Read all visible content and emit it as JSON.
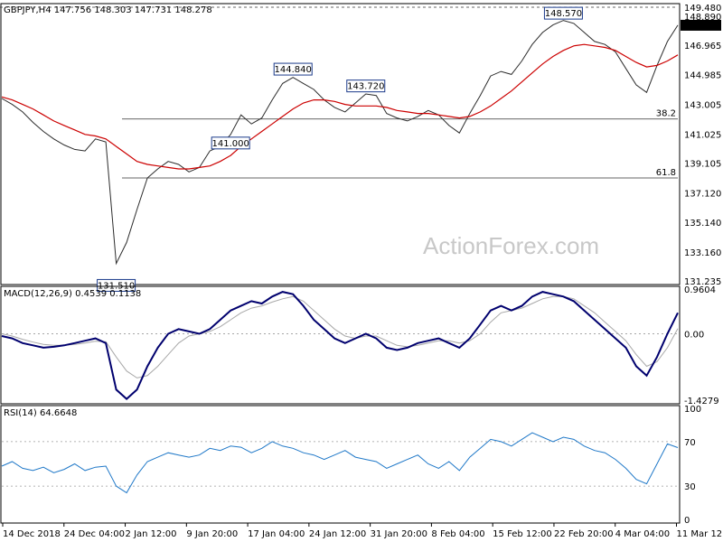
{
  "chart_data": {
    "type": "line",
    "panels": [
      {
        "name": "price",
        "header": "GBPJPY,H4  147.756 148.303 147.731 148.278",
        "y_axis_labels": [
          "149.480",
          "148.890",
          "148.278",
          "146.965",
          "144.985",
          "143.005",
          "141.025",
          "139.105",
          "137.120",
          "135.140",
          "133.160",
          "131.235"
        ],
        "current_price": "148.278",
        "ylim": [
          131.235,
          149.48
        ],
        "levels": [
          {
            "label": "38.2",
            "value": 142.03
          },
          {
            "label": "61.8",
            "value": 138.1
          }
        ],
        "annotations": [
          {
            "text": "131.510",
            "value": 131.51
          },
          {
            "text": "144.840",
            "value": 144.84
          },
          {
            "text": "148.570",
            "value": 148.57
          },
          {
            "text": "141.000",
            "value": 141.0
          },
          {
            "text": "143.720",
            "value": 143.72
          }
        ],
        "series": [
          {
            "values": [
              143.4,
              143.0,
              142.5,
              141.8,
              141.2,
              140.7,
              140.3,
              140.0,
              139.9,
              140.7,
              140.5,
              132.4,
              133.8,
              136.0,
              138.1,
              138.7,
              139.2,
              139.0,
              138.5,
              138.8,
              139.9,
              140.2,
              141.0,
              142.3,
              141.7,
              142.1,
              143.3,
              144.4,
              144.8,
              144.4,
              144.0,
              143.3,
              142.8,
              142.5,
              143.1,
              143.7,
              143.6,
              142.4,
              142.1,
              141.9,
              142.2,
              142.6,
              142.3,
              141.6,
              141.1,
              142.4,
              143.6,
              144.9,
              145.2,
              145.0,
              145.9,
              147.0,
              147.8,
              148.3,
              148.6,
              148.4,
              147.8,
              147.2,
              147.0,
              146.5,
              145.4,
              144.3,
              143.8,
              145.6,
              147.2,
              148.28
            ]
          },
          {
            "values": [
              143.5,
              143.3,
              143.0,
              142.7,
              142.3,
              141.9,
              141.6,
              141.3,
              141.0,
              140.9,
              140.7,
              140.2,
              139.7,
              139.2,
              139.0,
              138.9,
              138.8,
              138.7,
              138.7,
              138.8,
              138.9,
              139.2,
              139.6,
              140.2,
              140.7,
              141.2,
              141.7,
              142.2,
              142.7,
              143.1,
              143.3,
              143.3,
              143.2,
              143.0,
              142.9,
              142.9,
              142.9,
              142.8,
              142.6,
              142.5,
              142.4,
              142.4,
              142.3,
              142.2,
              142.1,
              142.2,
              142.5,
              142.9,
              143.4,
              143.9,
              144.5,
              145.1,
              145.7,
              146.2,
              146.6,
              146.9,
              147.0,
              146.9,
              146.8,
              146.6,
              146.2,
              145.8,
              145.5,
              145.6,
              145.9,
              146.3
            ]
          }
        ]
      },
      {
        "name": "macd",
        "header": "MACD(12,26,9) 0.4539 0.1138",
        "y_axis_labels": [
          "0.9604",
          "0.00",
          "-1.4279"
        ],
        "ylim": [
          -1.4279,
          0.9604
        ],
        "series": [
          {
            "values": [
              -0.05,
              -0.1,
              -0.2,
              -0.25,
              -0.3,
              -0.28,
              -0.25,
              -0.2,
              -0.15,
              -0.1,
              -0.2,
              -1.2,
              -1.4,
              -1.2,
              -0.7,
              -0.3,
              0.0,
              0.1,
              0.05,
              0.0,
              0.1,
              0.3,
              0.5,
              0.6,
              0.7,
              0.65,
              0.8,
              0.9,
              0.85,
              0.6,
              0.3,
              0.1,
              -0.1,
              -0.2,
              -0.1,
              0.0,
              -0.1,
              -0.3,
              -0.35,
              -0.3,
              -0.2,
              -0.15,
              -0.1,
              -0.2,
              -0.3,
              -0.1,
              0.2,
              0.5,
              0.6,
              0.5,
              0.6,
              0.8,
              0.9,
              0.85,
              0.8,
              0.7,
              0.5,
              0.3,
              0.1,
              -0.1,
              -0.3,
              -0.7,
              -0.9,
              -0.5,
              0.0,
              0.45
            ]
          },
          {
            "values": [
              0.0,
              -0.05,
              -0.12,
              -0.18,
              -0.23,
              -0.25,
              -0.25,
              -0.23,
              -0.2,
              -0.16,
              -0.17,
              -0.5,
              -0.8,
              -0.95,
              -0.9,
              -0.7,
              -0.45,
              -0.2,
              -0.05,
              0.0,
              0.05,
              0.15,
              0.3,
              0.45,
              0.55,
              0.6,
              0.68,
              0.75,
              0.8,
              0.7,
              0.5,
              0.3,
              0.1,
              -0.05,
              -0.1,
              -0.05,
              -0.05,
              -0.15,
              -0.25,
              -0.28,
              -0.25,
              -0.2,
              -0.15,
              -0.15,
              -0.2,
              -0.15,
              0.0,
              0.25,
              0.45,
              0.5,
              0.55,
              0.65,
              0.75,
              0.8,
              0.8,
              0.75,
              0.6,
              0.45,
              0.25,
              0.05,
              -0.15,
              -0.45,
              -0.7,
              -0.6,
              -0.3,
              0.11
            ]
          }
        ]
      },
      {
        "name": "rsi",
        "header": "RSI(14) 64.6648",
        "y_axis_labels": [
          "100",
          "70",
          "30",
          "0"
        ],
        "ylim": [
          0,
          100
        ],
        "levels": [
          {
            "label": "70",
            "value": 70
          },
          {
            "label": "30",
            "value": 30
          }
        ],
        "series": [
          {
            "values": [
              48,
              52,
              46,
              44,
              47,
              42,
              45,
              50,
              44,
              47,
              48,
              30,
              24,
              40,
              52,
              56,
              60,
              58,
              56,
              58,
              64,
              62,
              66,
              65,
              60,
              64,
              70,
              66,
              64,
              60,
              58,
              54,
              58,
              62,
              56,
              54,
              52,
              46,
              50,
              54,
              58,
              50,
              46,
              52,
              44,
              56,
              64,
              72,
              70,
              66,
              72,
              78,
              74,
              70,
              74,
              72,
              66,
              62,
              60,
              54,
              46,
              36,
              32,
              50,
              68,
              64.66
            ]
          }
        ]
      }
    ],
    "x_tick_labels": [
      "14 Dec 2018",
      "24 Dec 04:00",
      "2 Jan 12:00",
      "9 Jan 20:00",
      "17 Jan 04:00",
      "24 Jan 12:00",
      "31 Jan 20:00",
      "8 Feb 04:00",
      "15 Feb 12:00",
      "22 Feb 20:00",
      "4 Mar 04:00",
      "11 Mar 12:00"
    ],
    "watermark": "ActionForex.com"
  },
  "colors": {
    "price_line": "#2b2b2b",
    "moving_average": "#cc0000",
    "macd_line": "#00006e",
    "signal_line": "#a8a8a8",
    "rsi_line": "#1f78c8",
    "grid": "#9a9a9a",
    "current_price_bg": "#000000"
  }
}
